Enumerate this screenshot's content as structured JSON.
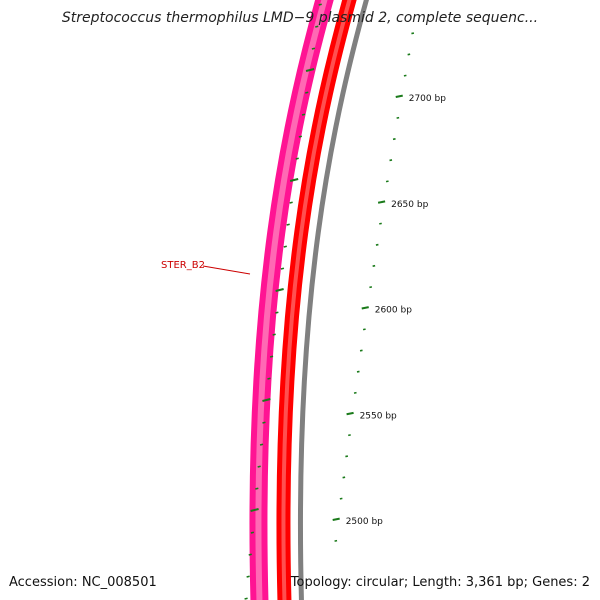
{
  "title": "Streptococcus thermophilus LMD−9 plasmid 2, complete sequenc...",
  "footer": {
    "accession": "Accession: NC_008501",
    "summary": "Topology: circular; Length: 3,361 bp; Genes: 2"
  },
  "colors": {
    "gene_outer": "#ff1493",
    "gene_inner": "#ff69b4",
    "strand_band": "#ff0000",
    "strand_highlight": "#ff5050",
    "backbone": "#808080",
    "ticks": "#1a7a1a",
    "gene_label": "#cc0000"
  },
  "gene": {
    "label": "STER_B2"
  },
  "ruler": [
    {
      "bp": 2500,
      "label": "2500 bp"
    },
    {
      "bp": 2550,
      "label": "2550 bp"
    },
    {
      "bp": 2600,
      "label": "2600 bp"
    },
    {
      "bp": 2650,
      "label": "2650 bp"
    },
    {
      "bp": 2700,
      "label": "2700 bp"
    }
  ]
}
